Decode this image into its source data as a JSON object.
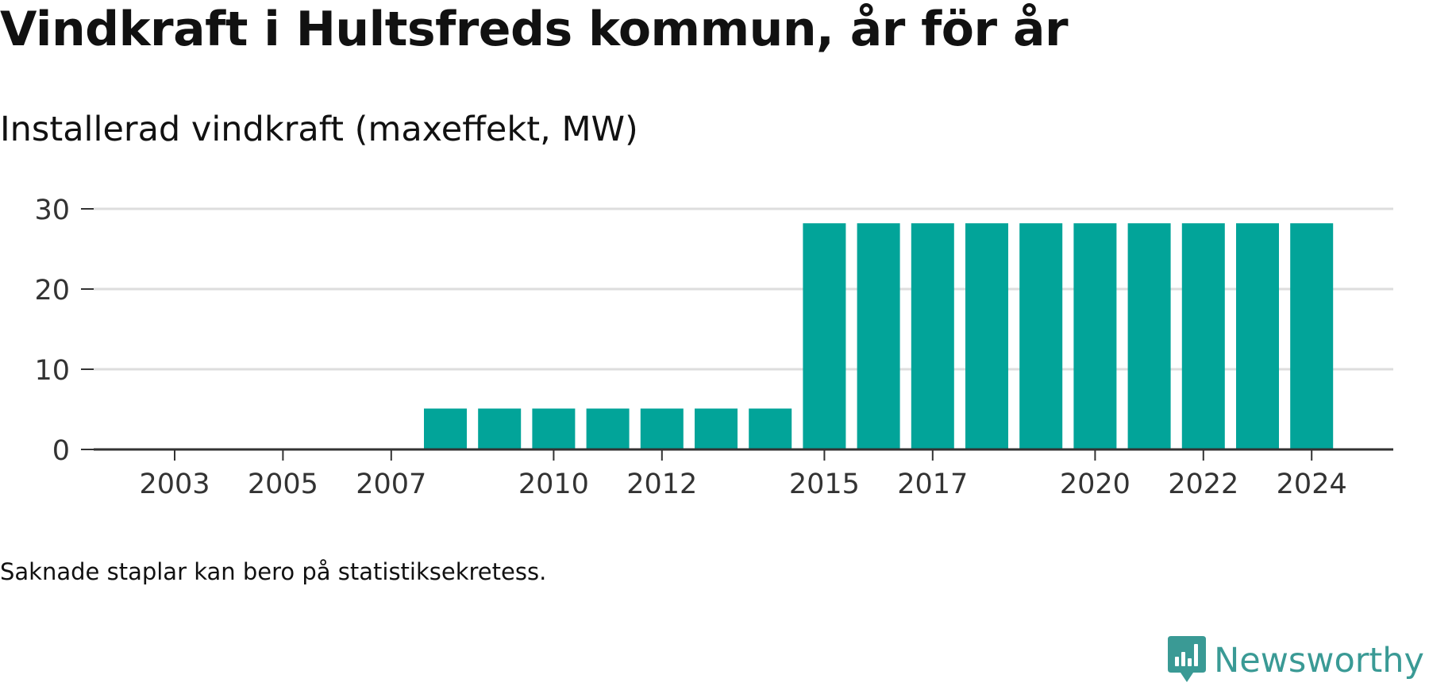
{
  "title": "Vindkraft i Hultsfreds kommun, år för år",
  "subtitle": "Installerad vindkraft (maxeffekt, MW)",
  "note": "Saknade staplar kan bero på statistiksekretess.",
  "brand": {
    "name": "Newsworthy",
    "icon": "newsworthy-logo-icon",
    "color": "#3a9a95"
  },
  "colors": {
    "bar": "#02a499",
    "grid": "#dddddd",
    "axis": "#333333",
    "tick_text": "#333333"
  },
  "chart_data": {
    "type": "bar",
    "title": "Vindkraft i Hultsfreds kommun, år för år",
    "subtitle": "Installerad vindkraft (maxeffekt, MW)",
    "xlabel": "",
    "ylabel": "",
    "categories": [
      "2003",
      "2004",
      "2005",
      "2006",
      "2007",
      "2008",
      "2009",
      "2010",
      "2011",
      "2012",
      "2013",
      "2014",
      "2015",
      "2016",
      "2017",
      "2018",
      "2019",
      "2020",
      "2021",
      "2022",
      "2023",
      "2024"
    ],
    "values": [
      0,
      0,
      0,
      0,
      0,
      5.1,
      5.1,
      5.1,
      5.1,
      5.1,
      5.1,
      5.1,
      28.2,
      28.2,
      28.2,
      28.2,
      28.2,
      28.2,
      28.2,
      28.2,
      28.2,
      28.2
    ],
    "x_tick_labels": [
      "2003",
      "2005",
      "2007",
      "2010",
      "2012",
      "2015",
      "2017",
      "2020",
      "2022",
      "2024"
    ],
    "y_ticks": [
      0,
      10,
      20,
      30
    ],
    "ylim": [
      0,
      30
    ],
    "grid": true,
    "legend": "none"
  }
}
